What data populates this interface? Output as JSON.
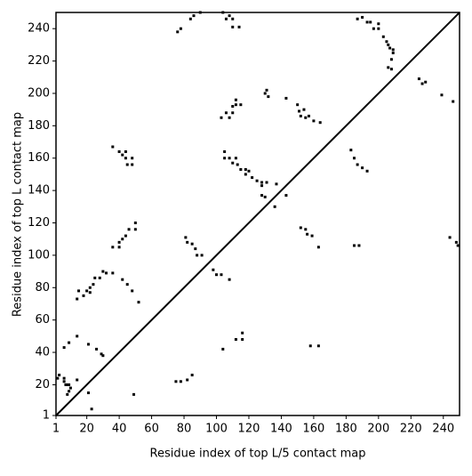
{
  "chart_data": {
    "type": "scatter",
    "xlabel": "Residue index of top L/5 contact map",
    "ylabel": "Residue index of top L contact map",
    "xlim": [
      1,
      250
    ],
    "ylim": [
      1,
      250
    ],
    "xticks": [
      1,
      20,
      40,
      60,
      80,
      100,
      120,
      140,
      160,
      180,
      200,
      220,
      240
    ],
    "yticks": [
      1,
      20,
      40,
      60,
      80,
      100,
      120,
      140,
      160,
      180,
      200,
      220,
      240
    ],
    "diagonal": true,
    "grid": false,
    "series": [
      {
        "color": "#000000",
        "x": [
          2,
          3,
          6,
          6,
          7,
          8,
          9,
          10,
          9,
          8,
          6,
          9,
          14,
          14,
          21,
          23,
          21,
          26,
          29,
          30,
          49,
          75,
          78,
          82,
          85,
          14,
          15,
          18,
          20,
          22,
          22,
          24,
          25,
          28,
          30,
          32,
          36,
          36,
          40,
          42,
          44,
          46,
          50,
          50,
          40,
          42,
          45,
          48,
          52,
          81,
          82,
          85,
          87,
          88,
          91,
          98,
          100,
          103,
          108,
          104,
          112,
          116,
          116,
          36,
          40,
          42,
          44,
          45,
          48,
          48,
          44,
          76,
          78,
          84,
          86,
          90,
          103,
          106,
          108,
          110,
          112,
          115,
          112,
          110,
          104,
          106,
          108,
          110,
          110,
          114,
          105,
          105,
          108,
          110,
          112,
          113,
          115,
          118,
          118,
          120,
          122,
          125,
          128,
          128,
          131,
          128,
          130,
          136,
          137,
          143,
          130,
          131,
          132,
          143,
          150,
          151,
          152,
          154,
          155,
          157,
          160,
          164,
          152,
          155,
          156,
          159,
          163,
          158,
          163,
          183,
          185,
          187,
          190,
          193,
          185,
          188,
          187,
          190,
          193,
          195,
          197,
          200,
          200,
          203,
          205,
          206,
          207,
          209,
          209,
          208,
          206,
          208,
          225,
          227,
          229,
          239,
          246,
          244,
          248,
          249
        ],
        "y": [
          24,
          26,
          24,
          22,
          20,
          20,
          20,
          18,
          16,
          14,
          43,
          46,
          50,
          23,
          15,
          5,
          45,
          42,
          39,
          38,
          14,
          22,
          22,
          23,
          26,
          73,
          78,
          75,
          78,
          80,
          77,
          82,
          86,
          86,
          90,
          89,
          89,
          105,
          105,
          110,
          112,
          116,
          116,
          120,
          108,
          85,
          82,
          78,
          71,
          111,
          108,
          107,
          104,
          100,
          100,
          91,
          88,
          88,
          85,
          42,
          48,
          48,
          52,
          167,
          164,
          162,
          160,
          156,
          156,
          160,
          164,
          238,
          240,
          246,
          248,
          250,
          185,
          188,
          185,
          192,
          193,
          193,
          196,
          188,
          250,
          246,
          248,
          246,
          241,
          241,
          164,
          160,
          160,
          157,
          160,
          156,
          153,
          153,
          150,
          152,
          148,
          146,
          145,
          143,
          145,
          137,
          136,
          130,
          144,
          137,
          200,
          202,
          198,
          197,
          193,
          189,
          186,
          190,
          185,
          186,
          183,
          182,
          117,
          116,
          113,
          112,
          105,
          44,
          44,
          165,
          160,
          156,
          154,
          152,
          106,
          106,
          246,
          247,
          244,
          244,
          240,
          243,
          240,
          235,
          232,
          230,
          228,
          227,
          225,
          221,
          216,
          215,
          209,
          206,
          207,
          199,
          195,
          111,
          108,
          106
        ]
      }
    ]
  }
}
